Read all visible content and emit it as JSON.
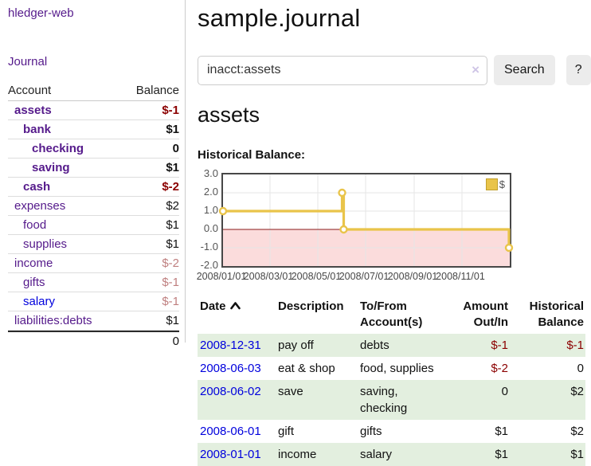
{
  "sidebar": {
    "brand": "hledger-web",
    "journal_link": "Journal",
    "accounts": {
      "headers": [
        "Account",
        "Balance"
      ],
      "rows": [
        {
          "name": "assets",
          "depth": 1,
          "bold": true,
          "balance": "$-1",
          "balance_style": "neg",
          "link_style": "visited"
        },
        {
          "name": "bank",
          "depth": 2,
          "bold": true,
          "balance": "$1",
          "balance_style": "pos",
          "link_style": "visited"
        },
        {
          "name": "checking",
          "depth": 3,
          "bold": true,
          "balance": "0",
          "balance_style": "pos",
          "link_style": "visited"
        },
        {
          "name": "saving",
          "depth": 3,
          "bold": true,
          "balance": "$1",
          "balance_style": "pos",
          "link_style": "visited"
        },
        {
          "name": "cash",
          "depth": 2,
          "bold": true,
          "balance": "$-2",
          "balance_style": "neg",
          "link_style": "visited"
        },
        {
          "name": "expenses",
          "depth": 1,
          "bold": false,
          "balance": "$2",
          "balance_style": "pos",
          "link_style": "visited"
        },
        {
          "name": "food",
          "depth": 2,
          "bold": false,
          "balance": "$1",
          "balance_style": "pos",
          "link_style": "visited"
        },
        {
          "name": "supplies",
          "depth": 2,
          "bold": false,
          "balance": "$1",
          "balance_style": "pos",
          "link_style": "visited"
        },
        {
          "name": "income",
          "depth": 1,
          "bold": false,
          "balance": "$-2",
          "balance_style": "negfade",
          "link_style": "visited"
        },
        {
          "name": "gifts",
          "depth": 2,
          "bold": false,
          "balance": "$-1",
          "balance_style": "negfade",
          "link_style": "visited"
        },
        {
          "name": "salary",
          "depth": 2,
          "bold": false,
          "balance": "$-1",
          "balance_style": "negfade",
          "link_style": "unvisited"
        },
        {
          "name": "liabilities:debts",
          "depth": 1,
          "bold": false,
          "balance": "$1",
          "balance_style": "pos",
          "link_style": "visited"
        }
      ],
      "total": "0"
    }
  },
  "main": {
    "title": "sample.journal",
    "search": {
      "value": "inacct:assets",
      "clear_icon": "×",
      "button_label": "Search",
      "help_label": "?"
    },
    "account_heading": "assets",
    "chart": {
      "title": "Historical Balance:",
      "chart_data": {
        "type": "line",
        "subtype": "step-with-markers",
        "series": [
          {
            "name": "$",
            "color": "#e9c44a",
            "points": [
              {
                "date": "2008-01-01",
                "value": 1
              },
              {
                "date": "2008-06-01",
                "value": 2
              },
              {
                "date": "2008-06-03",
                "value": 0
              },
              {
                "date": "2008-12-31",
                "value": -1
              }
            ]
          }
        ],
        "x_range": [
          "2008-01-01",
          "2009-01-01"
        ],
        "ylim": [
          -2,
          3
        ],
        "y_tick_labels": [
          "3.0",
          "2.0",
          "1.0",
          "0.0",
          "-1.0",
          "-2.0"
        ],
        "y_tick_values": [
          3,
          2,
          1,
          0,
          -1,
          -2
        ],
        "x_tick_labels": [
          "2008/01/01",
          "2008/03/01",
          "2008/05/01",
          "2008/07/01",
          "2008/09/01",
          "2008/11/01"
        ],
        "x_tick_dates": [
          "2008-01-01",
          "2008-03-01",
          "2008-05-01",
          "2008-07-01",
          "2008-09-01",
          "2008-11-01"
        ],
        "grid_dates": [
          "2008-03-01",
          "2008-05-01",
          "2008-07-01",
          "2008-09-01",
          "2008-11-01"
        ],
        "legend": "$",
        "legend_position": "top-right",
        "grid": true,
        "grid_color": "#e6e6e6",
        "negative_fill": "#fbdcdc",
        "zero_line_color": "#8b1a1a"
      }
    },
    "register": {
      "headers": [
        "Date",
        "Description",
        "To/From Account(s)",
        "Amount Out/In",
        "Historical Balance"
      ],
      "rows": [
        {
          "date": "2008-12-31",
          "description": "pay off",
          "accounts": "debts",
          "amount": "$-1",
          "amount_style": "neg",
          "balance": "$-1",
          "balance_style": "neg"
        },
        {
          "date": "2008-06-03",
          "description": "eat & shop",
          "accounts": "food, supplies",
          "amount": "$-2",
          "amount_style": "neg",
          "balance": "0",
          "balance_style": "pos"
        },
        {
          "date": "2008-06-02",
          "description": "save",
          "accounts": "saving, checking",
          "amount": "0",
          "amount_style": "pos",
          "balance": "$2",
          "balance_style": "pos"
        },
        {
          "date": "2008-06-01",
          "description": "gift",
          "accounts": "gifts",
          "amount": "$1",
          "amount_style": "pos",
          "balance": "$2",
          "balance_style": "pos"
        },
        {
          "date": "2008-01-01",
          "description": "income",
          "accounts": "salary",
          "amount": "$1",
          "amount_style": "pos",
          "balance": "$1",
          "balance_style": "pos"
        }
      ]
    }
  }
}
